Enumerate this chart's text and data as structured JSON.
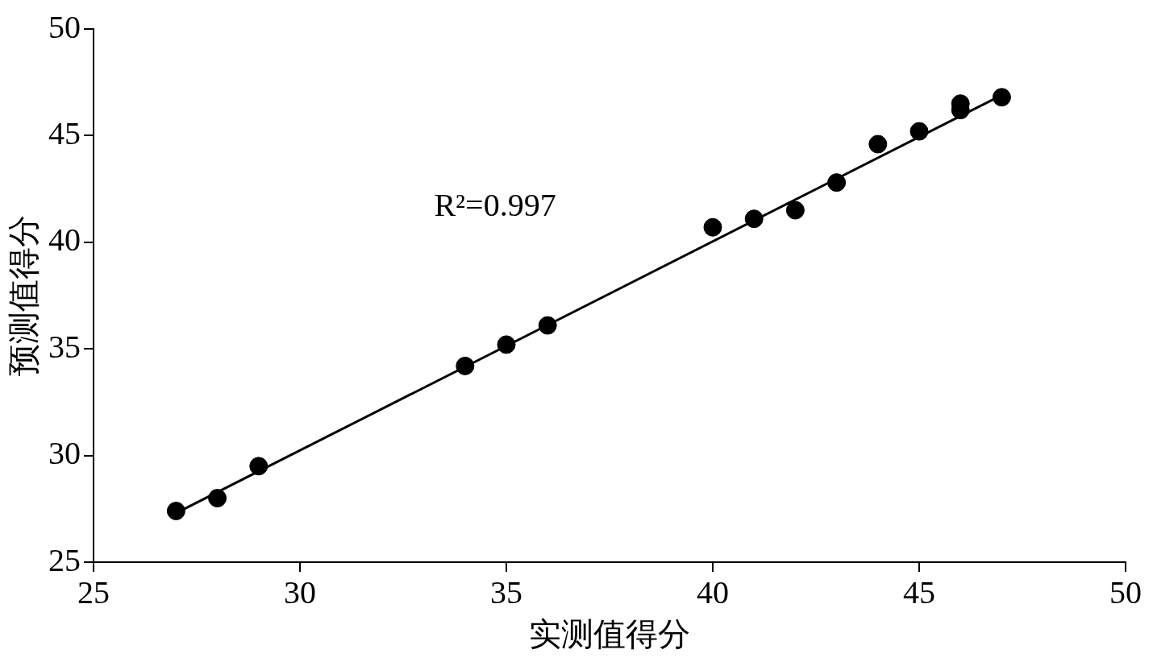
{
  "chart_data": {
    "type": "scatter",
    "xlabel": "实测值得分",
    "ylabel": "预测值得分",
    "xlim": [
      25,
      50
    ],
    "ylim": [
      25,
      50
    ],
    "xticks": [
      25,
      30,
      35,
      40,
      45,
      50
    ],
    "yticks": [
      25,
      30,
      35,
      40,
      45,
      50
    ],
    "grid": false,
    "legend": false,
    "marker": "circle",
    "annotations": [
      "R²=0.997"
    ],
    "series": [
      {
        "type": "scatter",
        "color": "#000000",
        "x": [
          27,
          28,
          29,
          34,
          35,
          36,
          40,
          41,
          42,
          43,
          44,
          45,
          46,
          46,
          47
        ],
        "values": [
          27.4,
          28.0,
          29.5,
          34.2,
          35.2,
          36.1,
          40.7,
          41.1,
          41.5,
          42.8,
          44.6,
          45.2,
          46.5,
          46.2,
          46.8
        ]
      },
      {
        "type": "line",
        "color": "#000000",
        "marker": "none",
        "line_style": "solid",
        "x": [
          27,
          47
        ],
        "values": [
          27.3,
          46.9
        ]
      }
    ]
  }
}
